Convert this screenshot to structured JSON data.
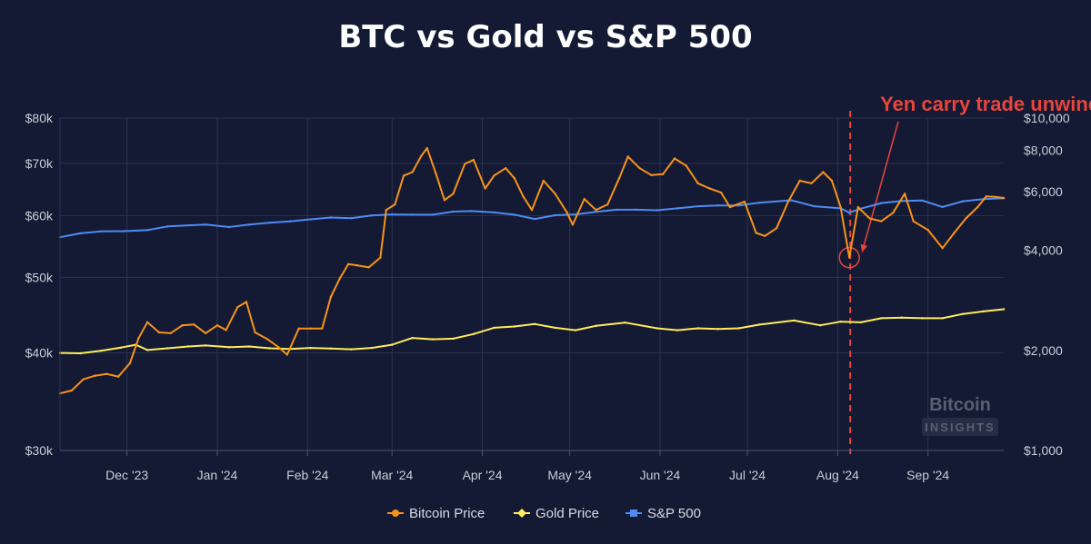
{
  "chart_data": {
    "type": "line",
    "title": "BTC vs Gold vs S&P 500",
    "x_labels": [
      "Dec '23",
      "Jan '24",
      "Feb '24",
      "Mar '24",
      "Apr '24",
      "May '24",
      "Jun '24",
      "Jul '24",
      "Aug '24",
      "Sep '24"
    ],
    "x_range": [
      "2023-11-08",
      "2024-09-27"
    ],
    "y_left": {
      "scale": "log",
      "range": [
        30000,
        80000
      ],
      "ticks": [
        30000,
        40000,
        50000,
        60000,
        70000,
        80000
      ],
      "tick_labels": [
        "$30k",
        "$40k",
        "$50k",
        "$60k",
        "$70k",
        "$80k"
      ]
    },
    "y_right": {
      "scale": "log",
      "range": [
        1000,
        10000
      ],
      "ticks": [
        1000,
        2000,
        4000,
        6000,
        8000,
        10000
      ],
      "tick_labels": [
        "$1,000",
        "$2,000",
        "$4,000",
        "$6,000",
        "$8,000",
        "$10,000"
      ]
    },
    "grid": true,
    "legend_position": "bottom",
    "series": [
      {
        "name": "Bitcoin Price",
        "axis": "left",
        "color": "#f7931a",
        "marker": "circle",
        "points": [
          [
            "2023-11-08",
            35500
          ],
          [
            "2023-11-12",
            35800
          ],
          [
            "2023-11-16",
            37000
          ],
          [
            "2023-11-20",
            37400
          ],
          [
            "2023-11-24",
            37600
          ],
          [
            "2023-11-28",
            37300
          ],
          [
            "2023-12-02",
            38800
          ],
          [
            "2023-12-05",
            41800
          ],
          [
            "2023-12-08",
            43800
          ],
          [
            "2023-12-12",
            42500
          ],
          [
            "2023-12-16",
            42400
          ],
          [
            "2023-12-20",
            43400
          ],
          [
            "2023-12-24",
            43500
          ],
          [
            "2023-12-28",
            42400
          ],
          [
            "2024-01-01",
            43400
          ],
          [
            "2024-01-04",
            42800
          ],
          [
            "2024-01-08",
            45800
          ],
          [
            "2024-01-11",
            46500
          ],
          [
            "2024-01-14",
            42500
          ],
          [
            "2024-01-18",
            41700
          ],
          [
            "2024-01-22",
            40700
          ],
          [
            "2024-01-25",
            39800
          ],
          [
            "2024-01-29",
            43000
          ],
          [
            "2024-02-02",
            43000
          ],
          [
            "2024-02-06",
            43000
          ],
          [
            "2024-02-09",
            47200
          ],
          [
            "2024-02-12",
            49800
          ],
          [
            "2024-02-15",
            52000
          ],
          [
            "2024-02-18",
            51800
          ],
          [
            "2024-02-22",
            51500
          ],
          [
            "2024-02-26",
            53000
          ],
          [
            "2024-02-28",
            61000
          ],
          [
            "2024-03-02",
            62000
          ],
          [
            "2024-03-05",
            67500
          ],
          [
            "2024-03-08",
            68200
          ],
          [
            "2024-03-11",
            71500
          ],
          [
            "2024-03-13",
            73200
          ],
          [
            "2024-03-16",
            68000
          ],
          [
            "2024-03-19",
            62800
          ],
          [
            "2024-03-22",
            64000
          ],
          [
            "2024-03-26",
            69900
          ],
          [
            "2024-03-29",
            70700
          ],
          [
            "2024-04-02",
            65000
          ],
          [
            "2024-04-05",
            67500
          ],
          [
            "2024-04-09",
            69000
          ],
          [
            "2024-04-12",
            67000
          ],
          [
            "2024-04-15",
            63500
          ],
          [
            "2024-04-18",
            61000
          ],
          [
            "2024-04-22",
            66500
          ],
          [
            "2024-04-26",
            64000
          ],
          [
            "2024-04-30",
            60600
          ],
          [
            "2024-05-02",
            58400
          ],
          [
            "2024-05-06",
            63000
          ],
          [
            "2024-05-10",
            61000
          ],
          [
            "2024-05-14",
            62000
          ],
          [
            "2024-05-18",
            67000
          ],
          [
            "2024-05-21",
            71400
          ],
          [
            "2024-05-25",
            69000
          ],
          [
            "2024-05-29",
            67600
          ],
          [
            "2024-06-02",
            67800
          ],
          [
            "2024-06-06",
            71000
          ],
          [
            "2024-06-10",
            69500
          ],
          [
            "2024-06-14",
            66000
          ],
          [
            "2024-06-18",
            65000
          ],
          [
            "2024-06-22",
            64200
          ],
          [
            "2024-06-25",
            61500
          ],
          [
            "2024-06-30",
            62500
          ],
          [
            "2024-07-04",
            57000
          ],
          [
            "2024-07-07",
            56500
          ],
          [
            "2024-07-11",
            57800
          ],
          [
            "2024-07-15",
            62500
          ],
          [
            "2024-07-19",
            66500
          ],
          [
            "2024-07-23",
            66000
          ],
          [
            "2024-07-27",
            68200
          ],
          [
            "2024-07-30",
            66500
          ],
          [
            "2024-08-02",
            61500
          ],
          [
            "2024-08-05",
            53000
          ],
          [
            "2024-08-08",
            61500
          ],
          [
            "2024-08-12",
            59500
          ],
          [
            "2024-08-16",
            59000
          ],
          [
            "2024-08-20",
            60500
          ],
          [
            "2024-08-24",
            64000
          ],
          [
            "2024-08-27",
            59000
          ],
          [
            "2024-09-01",
            57500
          ],
          [
            "2024-09-06",
            54500
          ],
          [
            "2024-09-10",
            57000
          ],
          [
            "2024-09-14",
            59500
          ],
          [
            "2024-09-18",
            61500
          ],
          [
            "2024-09-21",
            63500
          ],
          [
            "2024-09-24",
            63400
          ],
          [
            "2024-09-27",
            63200
          ]
        ]
      },
      {
        "name": "Gold Price",
        "axis": "right",
        "color": "#ffeb5c",
        "marker": "diamond",
        "points": [
          [
            "2023-11-08",
            1965
          ],
          [
            "2023-11-15",
            1960
          ],
          [
            "2023-11-22",
            1995
          ],
          [
            "2023-11-29",
            2040
          ],
          [
            "2023-12-04",
            2080
          ],
          [
            "2023-12-08",
            2005
          ],
          [
            "2023-12-15",
            2030
          ],
          [
            "2023-12-22",
            2055
          ],
          [
            "2023-12-28",
            2070
          ],
          [
            "2024-01-05",
            2045
          ],
          [
            "2024-01-12",
            2055
          ],
          [
            "2024-01-19",
            2030
          ],
          [
            "2024-01-26",
            2020
          ],
          [
            "2024-02-02",
            2035
          ],
          [
            "2024-02-09",
            2025
          ],
          [
            "2024-02-16",
            2015
          ],
          [
            "2024-02-23",
            2035
          ],
          [
            "2024-03-01",
            2080
          ],
          [
            "2024-03-08",
            2180
          ],
          [
            "2024-03-15",
            2160
          ],
          [
            "2024-03-22",
            2170
          ],
          [
            "2024-03-29",
            2240
          ],
          [
            "2024-04-05",
            2340
          ],
          [
            "2024-04-12",
            2360
          ],
          [
            "2024-04-19",
            2400
          ],
          [
            "2024-04-26",
            2340
          ],
          [
            "2024-05-03",
            2300
          ],
          [
            "2024-05-10",
            2370
          ],
          [
            "2024-05-20",
            2425
          ],
          [
            "2024-05-31",
            2330
          ],
          [
            "2024-06-07",
            2300
          ],
          [
            "2024-06-14",
            2330
          ],
          [
            "2024-06-21",
            2320
          ],
          [
            "2024-06-28",
            2330
          ],
          [
            "2024-07-05",
            2390
          ],
          [
            "2024-07-17",
            2460
          ],
          [
            "2024-07-26",
            2380
          ],
          [
            "2024-08-02",
            2440
          ],
          [
            "2024-08-09",
            2430
          ],
          [
            "2024-08-16",
            2500
          ],
          [
            "2024-08-23",
            2510
          ],
          [
            "2024-08-30",
            2500
          ],
          [
            "2024-09-06",
            2500
          ],
          [
            "2024-09-13",
            2575
          ],
          [
            "2024-09-20",
            2620
          ],
          [
            "2024-09-27",
            2660
          ]
        ]
      },
      {
        "name": "S&P 500",
        "axis": "right",
        "color": "#4d8bf5",
        "marker": "square",
        "points": [
          [
            "2023-11-08",
            4380
          ],
          [
            "2023-11-15",
            4500
          ],
          [
            "2023-11-22",
            4560
          ],
          [
            "2023-11-30",
            4570
          ],
          [
            "2023-12-08",
            4600
          ],
          [
            "2023-12-15",
            4720
          ],
          [
            "2023-12-28",
            4780
          ],
          [
            "2024-01-05",
            4700
          ],
          [
            "2024-01-12",
            4780
          ],
          [
            "2024-01-19",
            4840
          ],
          [
            "2024-01-26",
            4890
          ],
          [
            "2024-02-02",
            4960
          ],
          [
            "2024-02-09",
            5020
          ],
          [
            "2024-02-16",
            5000
          ],
          [
            "2024-02-23",
            5090
          ],
          [
            "2024-03-01",
            5130
          ],
          [
            "2024-03-08",
            5120
          ],
          [
            "2024-03-15",
            5120
          ],
          [
            "2024-03-22",
            5230
          ],
          [
            "2024-03-28",
            5250
          ],
          [
            "2024-04-05",
            5200
          ],
          [
            "2024-04-12",
            5120
          ],
          [
            "2024-04-19",
            4970
          ],
          [
            "2024-04-26",
            5100
          ],
          [
            "2024-05-03",
            5130
          ],
          [
            "2024-05-10",
            5220
          ],
          [
            "2024-05-17",
            5300
          ],
          [
            "2024-05-24",
            5300
          ],
          [
            "2024-05-31",
            5280
          ],
          [
            "2024-06-07",
            5350
          ],
          [
            "2024-06-14",
            5430
          ],
          [
            "2024-06-21",
            5460
          ],
          [
            "2024-06-28",
            5460
          ],
          [
            "2024-07-05",
            5560
          ],
          [
            "2024-07-16",
            5660
          ],
          [
            "2024-07-24",
            5430
          ],
          [
            "2024-08-02",
            5350
          ],
          [
            "2024-08-05",
            5190
          ],
          [
            "2024-08-09",
            5340
          ],
          [
            "2024-08-16",
            5550
          ],
          [
            "2024-08-23",
            5630
          ],
          [
            "2024-08-30",
            5650
          ],
          [
            "2024-09-06",
            5400
          ],
          [
            "2024-09-13",
            5620
          ],
          [
            "2024-09-20",
            5700
          ],
          [
            "2024-09-27",
            5740
          ]
        ]
      }
    ],
    "annotation": {
      "text": "Yen carry trade unwind",
      "date": "2024-08-05",
      "value": 53000,
      "color": "#e8453c"
    },
    "watermark": {
      "line1": "Bitcoin",
      "line2": "INSIGHTS"
    }
  }
}
